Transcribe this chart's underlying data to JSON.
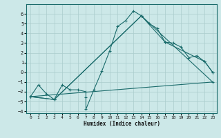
{
  "title": "",
  "xlabel": "Humidex (Indice chaleur)",
  "bg_color": "#cce8e8",
  "line_color": "#1a6b6b",
  "grid_color": "#aacccc",
  "xlim": [
    -0.5,
    23.5
  ],
  "ylim": [
    -4.2,
    7.0
  ],
  "xticks": [
    0,
    1,
    2,
    3,
    4,
    5,
    6,
    7,
    8,
    9,
    10,
    11,
    12,
    13,
    14,
    15,
    16,
    17,
    18,
    19,
    20,
    21,
    22,
    23
  ],
  "yticks": [
    -4,
    -3,
    -2,
    -1,
    0,
    1,
    2,
    3,
    4,
    5,
    6
  ],
  "series1_x": [
    0,
    1,
    2,
    3,
    4,
    5,
    6,
    7,
    7,
    7,
    8,
    9,
    10,
    11,
    12,
    13,
    14,
    15,
    16,
    17,
    18,
    19,
    20,
    21,
    22,
    23
  ],
  "series1_y": [
    -2.5,
    -1.3,
    -2.2,
    -2.8,
    -1.3,
    -1.8,
    -1.8,
    -2.0,
    -2.6,
    -3.8,
    -1.8,
    0.1,
    2.2,
    4.7,
    5.3,
    6.3,
    5.8,
    5.0,
    4.5,
    3.1,
    3.0,
    2.6,
    1.5,
    1.7,
    1.1,
    0.0
  ],
  "series2_x": [
    0,
    3,
    14,
    17,
    22,
    23
  ],
  "series2_y": [
    -2.5,
    -2.8,
    5.8,
    3.1,
    1.1,
    0.0
  ],
  "series3_x": [
    0,
    3,
    14,
    23
  ],
  "series3_y": [
    -2.5,
    -2.8,
    5.8,
    -1.0
  ],
  "series4_x": [
    0,
    23
  ],
  "series4_y": [
    -2.5,
    -1.0
  ],
  "marker": "+"
}
